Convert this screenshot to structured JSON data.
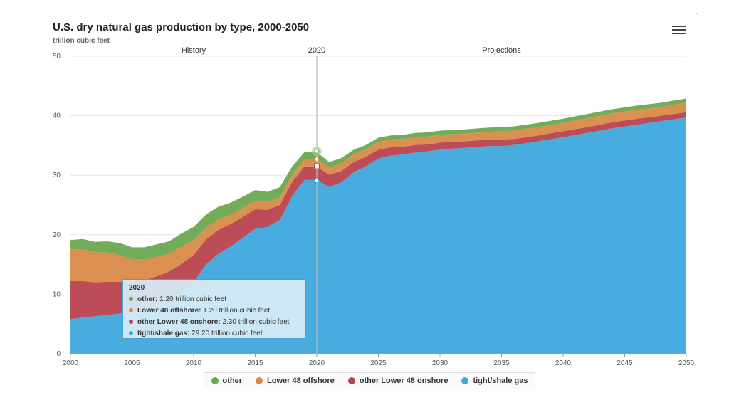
{
  "header": {
    "title": "U.S. dry natural gas production by type, 2000-2050",
    "subtitle": "trillion cubic feet",
    "menu_icon": "hamburger-menu-icon"
  },
  "chart_data": {
    "type": "area",
    "stacked": true,
    "title": "U.S. dry natural gas production by type, 2000-2050",
    "ylabel": "trillion cubic feet",
    "xlabel": "",
    "ylim": [
      0,
      50
    ],
    "xlim": [
      2000,
      2050
    ],
    "xticks": [
      "2000",
      "2005",
      "2010",
      "2015",
      "2020",
      "2025",
      "2030",
      "2035",
      "2040",
      "2045",
      "2050"
    ],
    "yticks": [
      "0",
      "10",
      "20",
      "30",
      "40",
      "50"
    ],
    "grid": true,
    "legend_position": "bottom",
    "annotations": {
      "divider_year": "2020",
      "history_label": "History",
      "projections_label": "Projections"
    },
    "x": [
      2000,
      2001,
      2002,
      2003,
      2004,
      2005,
      2006,
      2007,
      2008,
      2009,
      2010,
      2011,
      2012,
      2013,
      2014,
      2015,
      2016,
      2017,
      2018,
      2019,
      2020,
      2021,
      2022,
      2023,
      2024,
      2025,
      2026,
      2027,
      2028,
      2029,
      2030,
      2032,
      2034,
      2035,
      2036,
      2038,
      2040,
      2042,
      2044,
      2046,
      2048,
      2050
    ],
    "series": [
      {
        "name": "tight/shale gas",
        "color": "#3ea8dc",
        "values": [
          5.8,
          6.1,
          6.3,
          6.5,
          6.8,
          7.0,
          7.5,
          8.2,
          9.0,
          10.5,
          12.0,
          15.0,
          16.8,
          18.0,
          19.5,
          21.0,
          21.3,
          22.5,
          26.5,
          29.2,
          29.2,
          28.0,
          28.8,
          30.5,
          31.5,
          32.8,
          33.3,
          33.5,
          33.8,
          34.0,
          34.3,
          34.6,
          34.9,
          34.9,
          35.1,
          35.7,
          36.4,
          37.1,
          37.9,
          38.5,
          39.1,
          39.7
        ]
      },
      {
        "name": "other Lower 48 onshore",
        "color": "#b94250",
        "values": [
          6.4,
          6.1,
          5.7,
          5.6,
          5.3,
          5.0,
          4.9,
          4.8,
          4.8,
          4.6,
          4.6,
          4.2,
          4.0,
          3.8,
          3.5,
          3.3,
          2.9,
          2.5,
          2.4,
          2.3,
          2.3,
          2.1,
          1.9,
          1.7,
          1.6,
          1.5,
          1.4,
          1.3,
          1.3,
          1.2,
          1.2,
          1.1,
          1.1,
          1.1,
          1.0,
          1.0,
          1.0,
          1.0,
          1.0,
          1.0,
          0.9,
          0.9
        ]
      },
      {
        "name": "Lower 48 offshore",
        "color": "#d88a47",
        "values": [
          5.3,
          5.4,
          5.1,
          4.9,
          4.5,
          3.8,
          3.4,
          3.3,
          3.0,
          2.9,
          2.5,
          2.0,
          1.8,
          1.6,
          1.5,
          1.4,
          1.3,
          1.3,
          1.2,
          1.2,
          1.2,
          1.2,
          1.3,
          1.3,
          1.3,
          1.3,
          1.3,
          1.3,
          1.3,
          1.3,
          1.3,
          1.3,
          1.3,
          1.4,
          1.4,
          1.4,
          1.4,
          1.5,
          1.5,
          1.5,
          1.5,
          1.6
        ]
      },
      {
        "name": "other",
        "color": "#6aa84f",
        "values": [
          1.6,
          1.7,
          1.7,
          1.9,
          2.0,
          2.1,
          2.1,
          2.1,
          2.1,
          2.2,
          2.2,
          2.2,
          2.1,
          2.0,
          1.9,
          1.8,
          1.7,
          1.7,
          1.4,
          1.2,
          1.2,
          0.9,
          0.9,
          0.8,
          0.7,
          0.7,
          0.7,
          0.7,
          0.7,
          0.7,
          0.7,
          0.7,
          0.7,
          0.7,
          0.7,
          0.7,
          0.7,
          0.7,
          0.7,
          0.7,
          0.7,
          0.7
        ]
      }
    ]
  },
  "tooltip": {
    "year": "2020",
    "rows": [
      {
        "name": "other:",
        "value": "1.20 trillion cubic feet",
        "color": "#6aa84f"
      },
      {
        "name": "Lower 48 offshore:",
        "value": "1.20 trillion cubic feet",
        "color": "#d88a47"
      },
      {
        "name": "other Lower 48 onshore:",
        "value": "2.30 trillion cubic feet",
        "color": "#b94250"
      },
      {
        "name": "tight/shale gas:",
        "value": "29.20 trillion cubic feet",
        "color": "#3ea8dc"
      }
    ]
  },
  "legend": [
    {
      "label": "other",
      "color": "#6aa84f"
    },
    {
      "label": "Lower 48 offshore",
      "color": "#d88a47"
    },
    {
      "label": "other Lower 48 onshore",
      "color": "#b94250"
    },
    {
      "label": "tight/shale gas",
      "color": "#3ea8dc"
    }
  ]
}
